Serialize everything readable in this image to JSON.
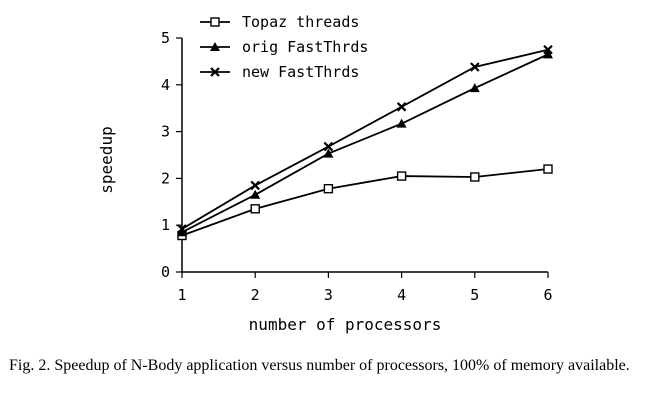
{
  "chart_data": {
    "type": "line",
    "x": [
      1,
      2,
      3,
      4,
      5,
      6
    ],
    "xlabel": "number of processors",
    "ylabel": "speedup",
    "xlim": [
      1,
      6
    ],
    "ylim": [
      0,
      5
    ],
    "x_ticks": [
      "1",
      "2",
      "3",
      "4",
      "5",
      "6"
    ],
    "y_ticks": [
      "0",
      "1",
      "2",
      "3",
      "4",
      "5"
    ],
    "grid": false,
    "legend_position": "top-left",
    "series": [
      {
        "name": "Topaz threads",
        "marker": "open-square",
        "values": [
          0.78,
          1.35,
          1.78,
          2.05,
          2.03,
          2.2
        ]
      },
      {
        "name": "orig FastThrds",
        "marker": "filled-triangle",
        "values": [
          0.85,
          1.65,
          2.53,
          3.17,
          3.93,
          4.65
        ]
      },
      {
        "name": "new FastThrds",
        "marker": "x-cross",
        "values": [
          0.92,
          1.85,
          2.68,
          3.53,
          4.38,
          4.75
        ]
      }
    ]
  },
  "caption": "Fig. 2.  Speedup of N-Body application versus number of processors, 100% of memory available."
}
